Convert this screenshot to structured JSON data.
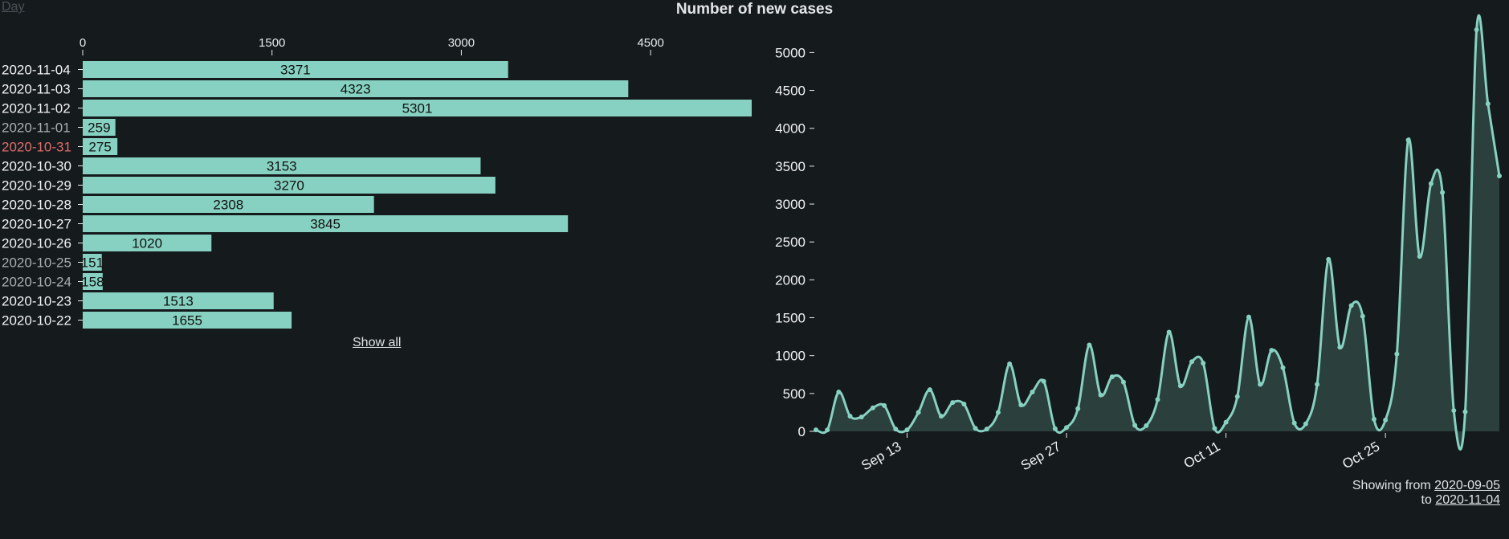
{
  "nav": {
    "day_link": "Day"
  },
  "title": "Number of new cases",
  "show_all_label": "Show all",
  "range": {
    "prefix": "Showing from",
    "from": "2020-09-05",
    "to_word": "to",
    "to": "2020-11-04"
  },
  "colors": {
    "accent": "#86d1c1",
    "background": "#151a1d",
    "weekend_label": "#a9aeb1",
    "holiday_label": "#e06c6c"
  },
  "chart_data": [
    {
      "type": "bar",
      "orientation": "horizontal",
      "categories": [
        "2020-11-04",
        "2020-11-03",
        "2020-11-02",
        "2020-11-01",
        "2020-10-31",
        "2020-10-30",
        "2020-10-29",
        "2020-10-28",
        "2020-10-27",
        "2020-10-26",
        "2020-10-25",
        "2020-10-24",
        "2020-10-23",
        "2020-10-22"
      ],
      "values": [
        3371,
        4323,
        5301,
        259,
        275,
        3153,
        3270,
        2308,
        3845,
        1020,
        151,
        158,
        1513,
        1655
      ],
      "label_style": [
        "normal",
        "normal",
        "normal",
        "weekend",
        "holiday",
        "normal",
        "normal",
        "normal",
        "normal",
        "normal",
        "weekend",
        "weekend",
        "normal",
        "normal"
      ],
      "xticks": [
        0,
        1500,
        3000,
        4500
      ],
      "xlim": [
        0,
        5301
      ]
    },
    {
      "type": "area",
      "x_start": "2020-09-05",
      "x_end": "2020-11-04",
      "y": [
        20,
        18,
        520,
        200,
        190,
        310,
        340,
        30,
        20,
        250,
        550,
        200,
        380,
        360,
        40,
        30,
        250,
        890,
        350,
        520,
        660,
        35,
        50,
        300,
        1140,
        480,
        720,
        650,
        80,
        75,
        420,
        1310,
        600,
        920,
        900,
        40,
        120,
        460,
        1510,
        620,
        1070,
        840,
        110,
        100,
        620,
        2270,
        1110,
        1660,
        1520,
        160,
        150,
        1020,
        3845,
        2308,
        3270,
        3153,
        275,
        259,
        5301,
        4323,
        3371
      ],
      "xticks": [
        "Sep 13",
        "Sep 27",
        "Oct 11",
        "Oct 25"
      ],
      "yticks": [
        0,
        500,
        1000,
        1500,
        2000,
        2500,
        3000,
        3500,
        4000,
        4500,
        5000
      ],
      "ylim": [
        0,
        5301
      ]
    }
  ]
}
